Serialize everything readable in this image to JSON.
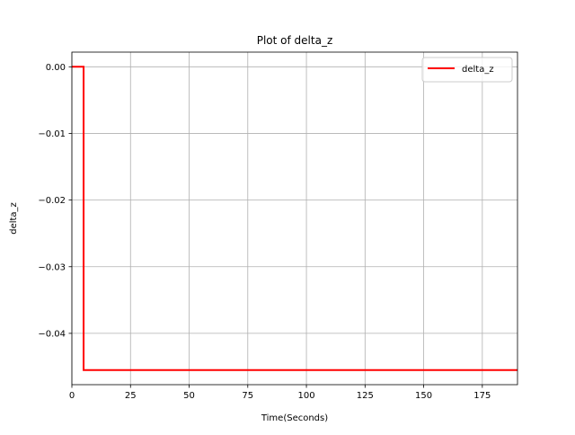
{
  "chart_data": {
    "type": "line",
    "title": "Plot of delta_z",
    "xlabel": "Time(Seconds)",
    "ylabel": "delta_z",
    "xlim": [
      0,
      190
    ],
    "ylim": [
      -0.0477,
      0.0022
    ],
    "x_ticks": [
      0,
      25,
      50,
      75,
      100,
      125,
      150,
      175
    ],
    "x_tick_labels": [
      "0",
      "25",
      "50",
      "75",
      "100",
      "125",
      "150",
      "175"
    ],
    "y_ticks": [
      0.0,
      -0.01,
      -0.02,
      -0.03,
      -0.04
    ],
    "y_tick_labels": [
      "0.00",
      "−0.01",
      "−0.02",
      "−0.03",
      "−0.04"
    ],
    "grid": true,
    "legend_position": "top-right",
    "series": [
      {
        "name": "delta_z",
        "color": "#ff0000",
        "x": [
          0,
          5,
          5,
          190
        ],
        "y": [
          0.0,
          0.0,
          -0.0455,
          -0.0455
        ]
      }
    ]
  }
}
